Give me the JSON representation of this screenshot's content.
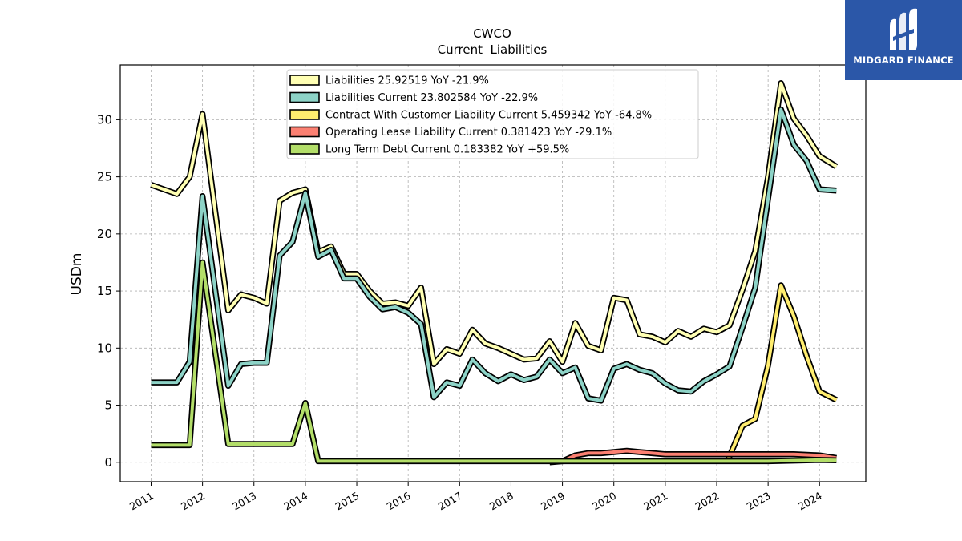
{
  "brand": {
    "name": "MIDGARD FINANCE",
    "bg_color": "#2b57a8"
  },
  "chart_data": {
    "type": "line",
    "title": "CWCO",
    "subtitle": "Current  Liabilities",
    "ylabel": "USDm",
    "xlabel": "",
    "ylim": [
      -1.7,
      34.8
    ],
    "xlim": [
      2010.4,
      2024.9
    ],
    "yticks": [
      0,
      5,
      10,
      15,
      20,
      25,
      30
    ],
    "xticks": [
      "2011",
      "2012",
      "2013",
      "2014",
      "2015",
      "2016",
      "2017",
      "2018",
      "2019",
      "2020",
      "2021",
      "2022",
      "2023",
      "2024"
    ],
    "grid": true,
    "legend_position": "top-center",
    "series": [
      {
        "name": "Liabilities",
        "legend": "Liabilities  25.92519 YoY -21.9%",
        "color": "#ffffb3",
        "points": [
          [
            2011.0,
            24.3
          ],
          [
            2011.5,
            23.5
          ],
          [
            2011.75,
            25.0
          ],
          [
            2012.0,
            30.5
          ],
          [
            2012.5,
            13.3
          ],
          [
            2012.75,
            14.7
          ],
          [
            2013.0,
            14.4
          ],
          [
            2013.25,
            13.9
          ],
          [
            2013.5,
            22.9
          ],
          [
            2013.75,
            23.6
          ],
          [
            2014.0,
            23.9
          ],
          [
            2014.25,
            18.4
          ],
          [
            2014.5,
            18.9
          ],
          [
            2014.75,
            16.5
          ],
          [
            2015.0,
            16.5
          ],
          [
            2015.25,
            15.0
          ],
          [
            2015.5,
            13.9
          ],
          [
            2015.75,
            14.0
          ],
          [
            2016.0,
            13.7
          ],
          [
            2016.25,
            15.3
          ],
          [
            2016.5,
            8.6
          ],
          [
            2016.75,
            9.9
          ],
          [
            2017.0,
            9.5
          ],
          [
            2017.25,
            11.6
          ],
          [
            2017.5,
            10.4
          ],
          [
            2017.75,
            10.0
          ],
          [
            2018.0,
            9.5
          ],
          [
            2018.25,
            9.0
          ],
          [
            2018.5,
            9.1
          ],
          [
            2018.75,
            10.6
          ],
          [
            2019.0,
            8.8
          ],
          [
            2019.25,
            12.2
          ],
          [
            2019.5,
            10.2
          ],
          [
            2019.75,
            9.8
          ],
          [
            2020.0,
            14.4
          ],
          [
            2020.25,
            14.2
          ],
          [
            2020.5,
            11.2
          ],
          [
            2020.75,
            11.0
          ],
          [
            2021.0,
            10.5
          ],
          [
            2021.25,
            11.5
          ],
          [
            2021.5,
            11.0
          ],
          [
            2021.75,
            11.7
          ],
          [
            2022.0,
            11.4
          ],
          [
            2022.25,
            12.0
          ],
          [
            2022.5,
            15.1
          ],
          [
            2022.75,
            18.5
          ],
          [
            2023.0,
            25.0
          ],
          [
            2023.25,
            33.2
          ],
          [
            2023.5,
            30.1
          ],
          [
            2023.75,
            28.6
          ],
          [
            2024.0,
            26.8
          ],
          [
            2024.33,
            25.9
          ]
        ]
      },
      {
        "name": "Liabilities Current",
        "legend": "Liabilities Current  23.802584 YoY -22.9%",
        "color": "#8dd3c7",
        "points": [
          [
            2011.0,
            7.0
          ],
          [
            2011.5,
            7.0
          ],
          [
            2011.75,
            8.8
          ],
          [
            2012.0,
            23.3
          ],
          [
            2012.5,
            6.7
          ],
          [
            2012.75,
            8.6
          ],
          [
            2013.0,
            8.7
          ],
          [
            2013.25,
            8.7
          ],
          [
            2013.5,
            18.1
          ],
          [
            2013.75,
            19.3
          ],
          [
            2014.0,
            23.6
          ],
          [
            2014.25,
            18.0
          ],
          [
            2014.5,
            18.6
          ],
          [
            2014.75,
            16.1
          ],
          [
            2015.0,
            16.1
          ],
          [
            2015.25,
            14.5
          ],
          [
            2015.5,
            13.4
          ],
          [
            2015.75,
            13.6
          ],
          [
            2016.0,
            13.1
          ],
          [
            2016.25,
            12.1
          ],
          [
            2016.5,
            5.7
          ],
          [
            2016.75,
            7.0
          ],
          [
            2017.0,
            6.7
          ],
          [
            2017.25,
            9.0
          ],
          [
            2017.5,
            7.8
          ],
          [
            2017.75,
            7.1
          ],
          [
            2018.0,
            7.7
          ],
          [
            2018.25,
            7.2
          ],
          [
            2018.5,
            7.5
          ],
          [
            2018.75,
            9.0
          ],
          [
            2019.0,
            7.8
          ],
          [
            2019.25,
            8.3
          ],
          [
            2019.5,
            5.6
          ],
          [
            2019.75,
            5.4
          ],
          [
            2020.0,
            8.2
          ],
          [
            2020.25,
            8.6
          ],
          [
            2020.5,
            8.1
          ],
          [
            2020.75,
            7.8
          ],
          [
            2021.0,
            6.9
          ],
          [
            2021.25,
            6.3
          ],
          [
            2021.5,
            6.2
          ],
          [
            2021.75,
            7.1
          ],
          [
            2022.0,
            7.7
          ],
          [
            2022.25,
            8.4
          ],
          [
            2022.5,
            11.8
          ],
          [
            2022.75,
            15.3
          ],
          [
            2023.0,
            23.1
          ],
          [
            2023.25,
            30.9
          ],
          [
            2023.5,
            27.8
          ],
          [
            2023.75,
            26.4
          ],
          [
            2024.0,
            23.9
          ],
          [
            2024.33,
            23.8
          ]
        ]
      },
      {
        "name": "Contract With Customer Liability Current",
        "legend": "Contract With Customer Liability Current  5.459342 YoY -64.8%",
        "color": "#ffed6f",
        "points": [
          [
            2022.2,
            0.0
          ],
          [
            2022.5,
            3.2
          ],
          [
            2022.75,
            3.8
          ],
          [
            2023.0,
            8.5
          ],
          [
            2023.25,
            15.5
          ],
          [
            2023.5,
            12.8
          ],
          [
            2023.75,
            9.3
          ],
          [
            2024.0,
            6.2
          ],
          [
            2024.33,
            5.46
          ]
        ]
      },
      {
        "name": "Operating Lease Liability Current",
        "legend": "Operating Lease Liability Current  0.381423 YoY -29.1%",
        "color": "#fb8072",
        "points": [
          [
            2018.75,
            0.0
          ],
          [
            2019.0,
            0.1
          ],
          [
            2019.25,
            0.6
          ],
          [
            2019.5,
            0.8
          ],
          [
            2019.75,
            0.8
          ],
          [
            2020.0,
            0.9
          ],
          [
            2020.25,
            1.0
          ],
          [
            2020.5,
            0.9
          ],
          [
            2020.75,
            0.8
          ],
          [
            2021.0,
            0.7
          ],
          [
            2021.25,
            0.7
          ],
          [
            2021.5,
            0.7
          ],
          [
            2021.75,
            0.7
          ],
          [
            2022.0,
            0.7
          ],
          [
            2022.5,
            0.7
          ],
          [
            2023.0,
            0.7
          ],
          [
            2023.5,
            0.7
          ],
          [
            2024.0,
            0.6
          ],
          [
            2024.33,
            0.38
          ]
        ]
      },
      {
        "name": "Long Term Debt Current",
        "legend": "Long Term Debt Current  0.183382 YoY +59.5%",
        "color": "#b3de69",
        "points": [
          [
            2011.0,
            1.5
          ],
          [
            2011.75,
            1.5
          ],
          [
            2012.0,
            17.5
          ],
          [
            2012.5,
            1.6
          ],
          [
            2013.75,
            1.6
          ],
          [
            2014.0,
            5.2
          ],
          [
            2014.25,
            0.1
          ],
          [
            2015.0,
            0.1
          ],
          [
            2016.0,
            0.1
          ],
          [
            2017.0,
            0.1
          ],
          [
            2018.0,
            0.1
          ],
          [
            2019.0,
            0.1
          ],
          [
            2020.0,
            0.1
          ],
          [
            2021.0,
            0.1
          ],
          [
            2022.0,
            0.1
          ],
          [
            2023.0,
            0.1
          ],
          [
            2024.0,
            0.2
          ],
          [
            2024.33,
            0.18
          ]
        ]
      }
    ]
  }
}
